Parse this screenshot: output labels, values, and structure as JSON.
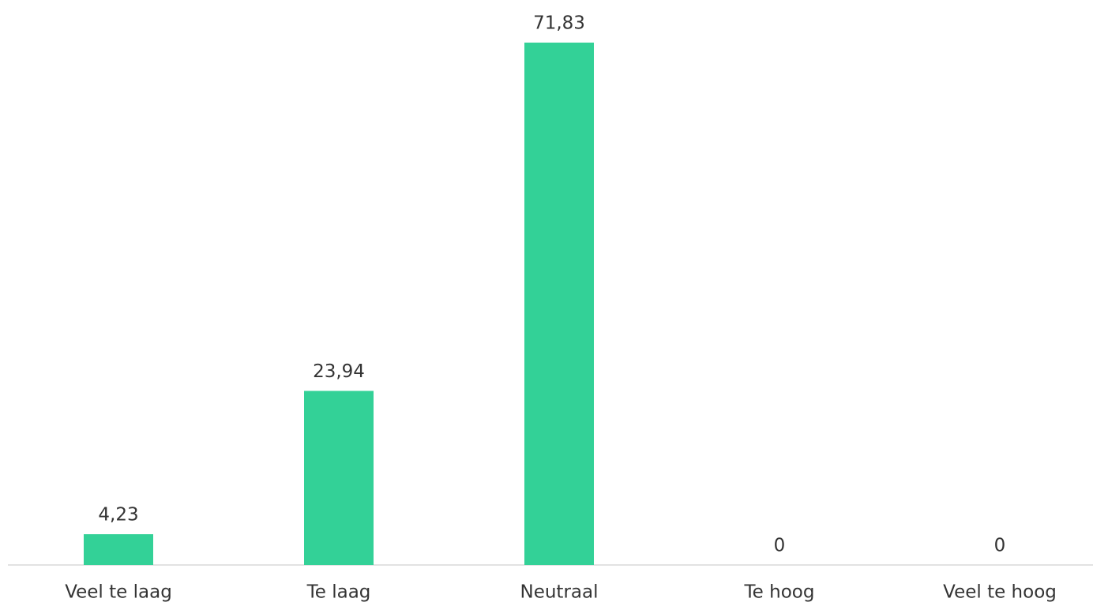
{
  "chart_data": {
    "type": "bar",
    "categories": [
      "Veel te laag",
      "Te laag",
      "Neutraal",
      "Te hoog",
      "Veel te hoog"
    ],
    "values": [
      4.23,
      23.94,
      71.83,
      0,
      0
    ],
    "value_labels": [
      "4,23",
      "23,94",
      "71,83",
      "0",
      "0"
    ],
    "color": "#33d197"
  }
}
